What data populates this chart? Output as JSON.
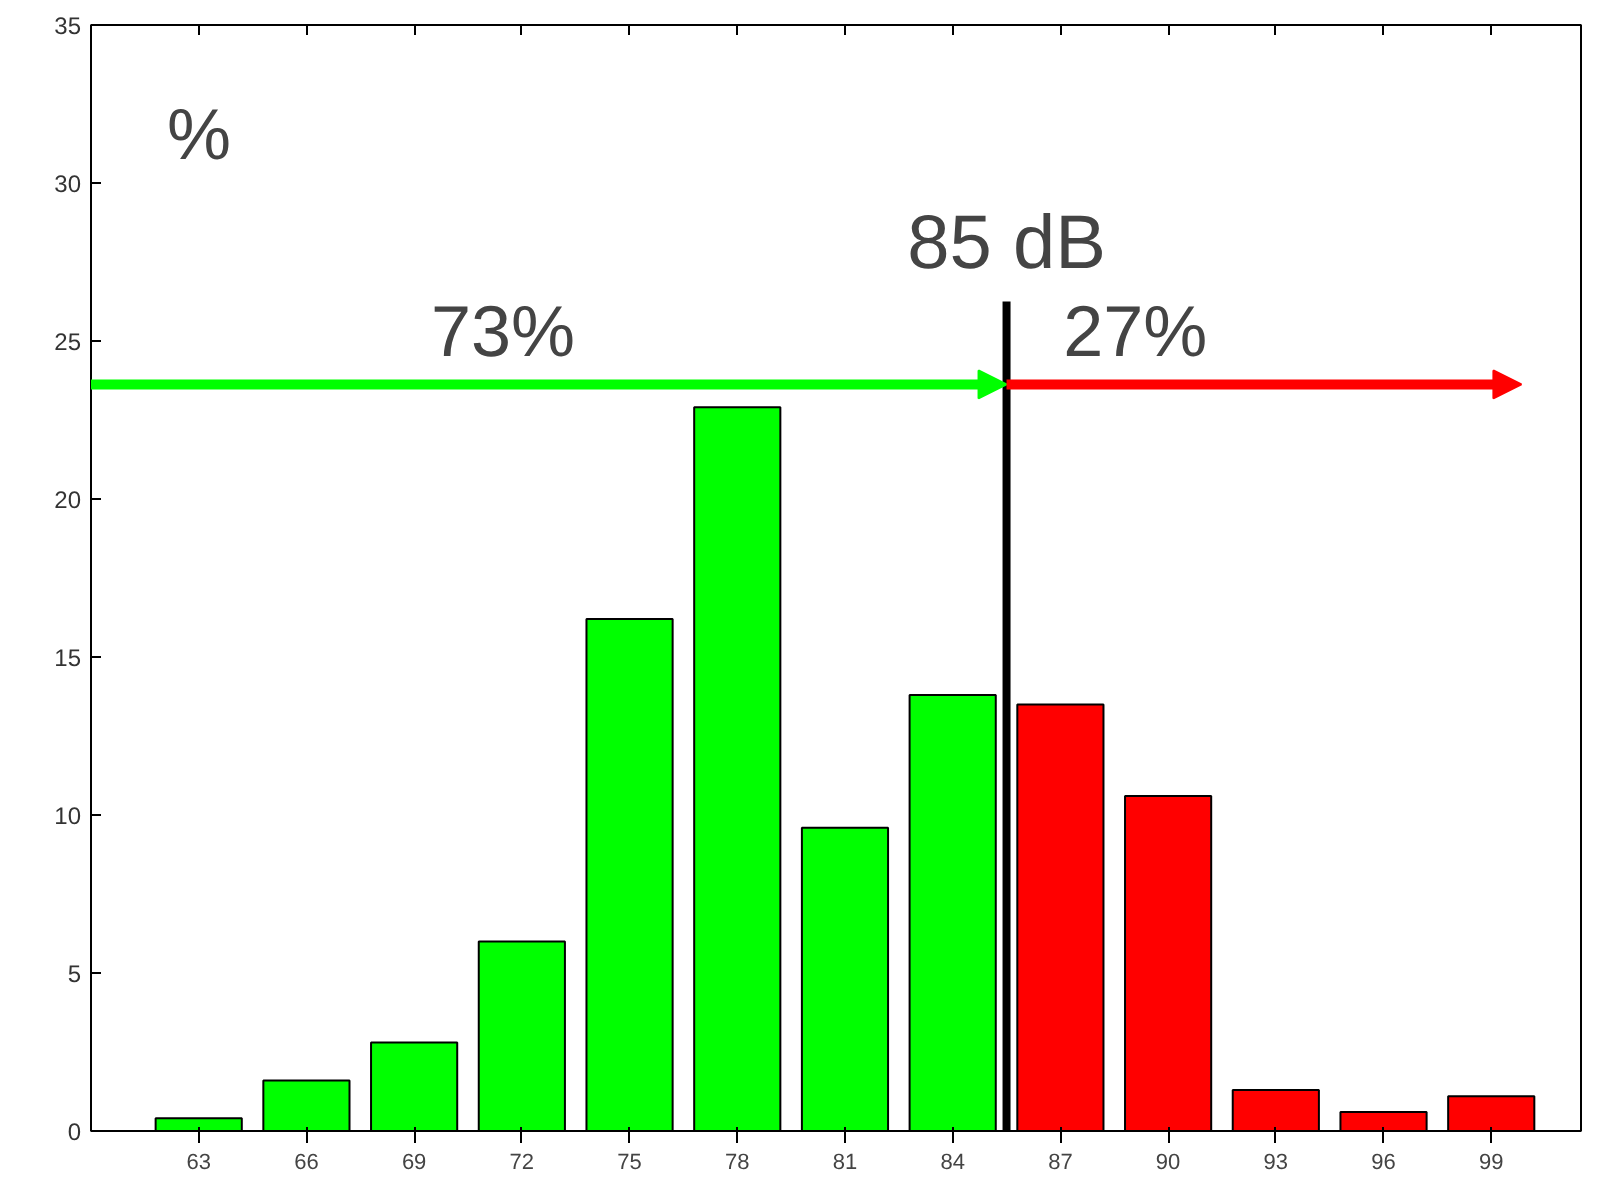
{
  "chart_data": {
    "type": "bar",
    "ylabel": "%",
    "x": [
      63,
      66,
      69,
      72,
      75,
      78,
      81,
      84,
      87,
      90,
      93,
      96,
      99
    ],
    "xticks": [
      63,
      66,
      69,
      72,
      75,
      78,
      81,
      84,
      87,
      90,
      93,
      96,
      99
    ],
    "xlim": [
      60,
      101.5
    ],
    "ylim": [
      0,
      35
    ],
    "yticks": [
      0,
      5,
      10,
      15,
      20,
      25,
      30,
      35
    ],
    "values": [
      0.4,
      1.6,
      2.8,
      6.0,
      16.2,
      22.9,
      9.6,
      13.8,
      13.5,
      10.6,
      1.3,
      0.6,
      1.1
    ],
    "colors": [
      "#00ff00",
      "#00ff00",
      "#00ff00",
      "#00ff00",
      "#00ff00",
      "#00ff00",
      "#00ff00",
      "#00ff00",
      "#ff0000",
      "#ff0000",
      "#ff0000",
      "#ff0000",
      "#ff0000"
    ],
    "ref_lines": [
      {
        "axis": "x",
        "value": 85.5,
        "label": "85 dB",
        "color": "#000000"
      }
    ],
    "annotations": [
      "73%",
      "27%"
    ],
    "grid": false
  }
}
